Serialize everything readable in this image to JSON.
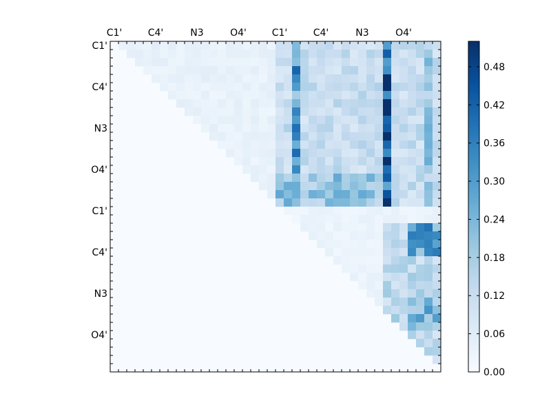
{
  "chart_data": {
    "type": "heatmap",
    "title": "",
    "xlabel": "",
    "ylabel": "",
    "x_tick_labels": [
      "C1'",
      "C4'",
      "N3",
      "O4'",
      "C1'",
      "C4'",
      "N3",
      "O4'"
    ],
    "y_tick_labels": [
      "C1'",
      "C4'",
      "N3",
      "O4'",
      "C1'",
      "C4'",
      "N3",
      "O4'"
    ],
    "grid_size": 40,
    "colormap": "Blues",
    "colorbar": {
      "ticks": [
        0.0,
        0.06,
        0.12,
        0.18,
        0.24,
        0.3,
        0.36,
        0.42,
        0.48
      ],
      "tick_labels": [
        "0.00",
        "0.06",
        "0.12",
        "0.18",
        "0.24",
        "0.30",
        "0.36",
        "0.42",
        "0.48"
      ],
      "range": [
        0.0,
        0.52
      ]
    },
    "value_regions": [
      {
        "rows": [
          0,
          19
        ],
        "cols": [
          0,
          19
        ],
        "mode": "upper",
        "value": 0.04
      },
      {
        "rows": [
          0,
          19
        ],
        "cols": [
          20,
          39
        ],
        "value": 0.12
      },
      {
        "rows": [
          0,
          19
        ],
        "cols": [
          22,
          22
        ],
        "value": 0.3
      },
      {
        "rows": [
          0,
          19
        ],
        "cols": [
          33,
          33
        ],
        "value": 0.18
      },
      {
        "rows": [
          0,
          19
        ],
        "cols": [
          33,
          33
        ],
        "value": 0.46
      },
      {
        "rows": [
          0,
          19
        ],
        "cols": [
          38,
          38
        ],
        "value": 0.2
      },
      {
        "rows": [
          16,
          19
        ],
        "cols": [
          20,
          32
        ],
        "value": 0.2
      },
      {
        "rows": [
          20,
          39
        ],
        "cols": [
          20,
          39
        ],
        "mode": "upper",
        "value": 0.03
      },
      {
        "rows": [
          22,
          39
        ],
        "cols": [
          33,
          39
        ],
        "mode": "upper",
        "value": 0.14
      },
      {
        "rows": [
          22,
          25
        ],
        "cols": [
          36,
          39
        ],
        "value": 0.28
      },
      {
        "rows": [
          31,
          34
        ],
        "cols": [
          36,
          39
        ],
        "value": 0.24
      }
    ]
  },
  "colors": {
    "background": "#ffffff",
    "axis": "#000000",
    "low": "#f7fbff",
    "high": "#08306b"
  }
}
